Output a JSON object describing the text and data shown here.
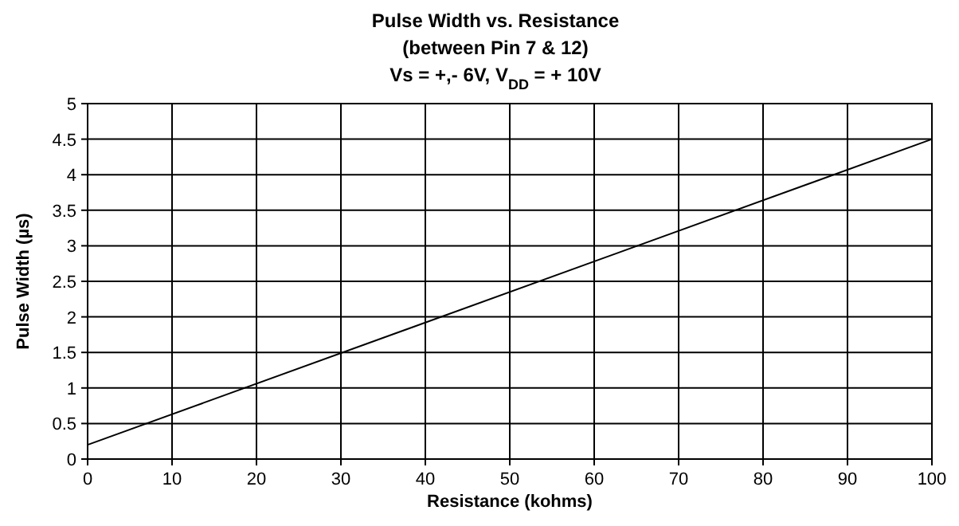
{
  "chart_data": {
    "type": "line",
    "title": "Pulse Width vs. Resistance",
    "subtitle": "(between Pin 7 & 12)\nVs = +,- 6V, V$_{DD}$ = + 10V",
    "xlabel": "Resistance (kohms)",
    "ylabel": "Pulse Width (µs)",
    "x": [
      0,
      100
    ],
    "series": [
      {
        "color": "#000000",
        "values": [
          0.2,
          4.5
        ]
      }
    ],
    "xlim": [
      0,
      100
    ],
    "xticks": [
      0,
      10,
      20,
      30,
      40,
      50,
      60,
      70,
      80,
      90,
      100
    ],
    "ylim": [
      0,
      5
    ],
    "yticks": [
      0,
      0.5,
      1,
      1.5,
      2,
      2.5,
      3,
      3.5,
      4,
      4.5,
      5
    ],
    "grid": true,
    "marker": "none",
    "line_style": "solid"
  }
}
